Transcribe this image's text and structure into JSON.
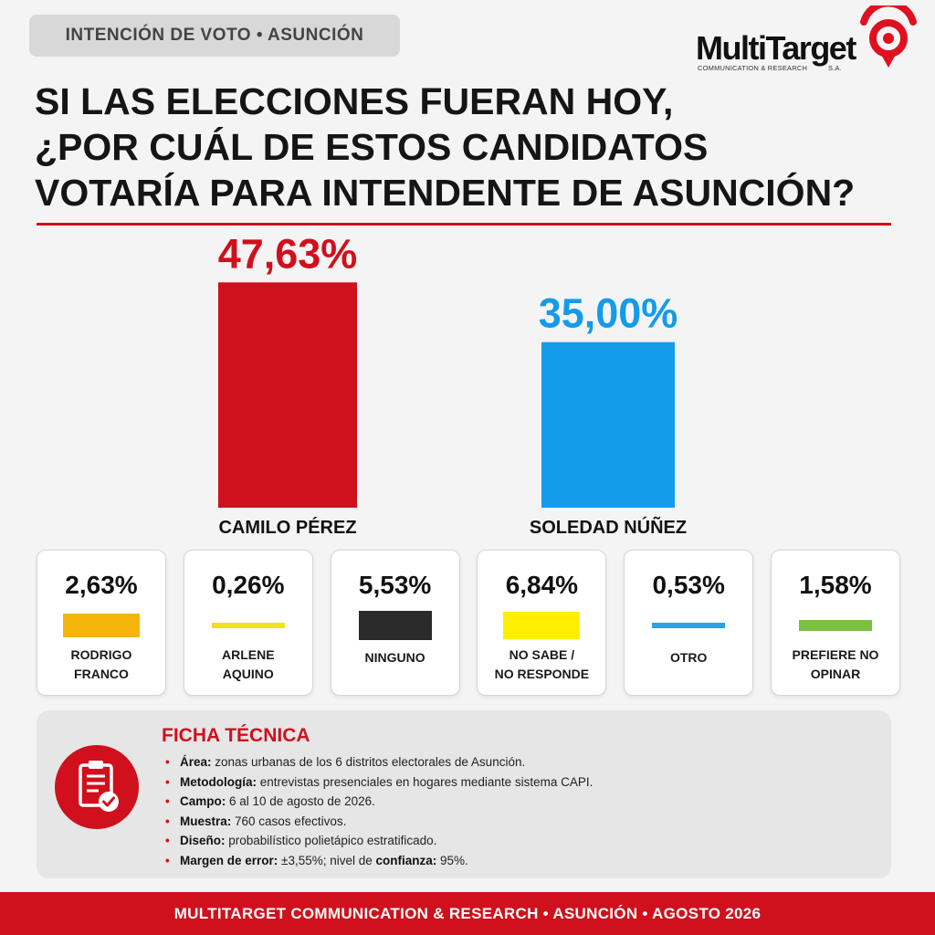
{
  "header": {
    "tag": "INTENCIÓN DE VOTO • ASUNCIÓN",
    "logo_brand": "MultiTarget",
    "logo_sub": "COMMUNICATION & RESEARCH",
    "logo_suffix": "S.A.",
    "question_lines": [
      "SI LAS ELECCIONES FUERAN HOY,",
      "¿POR CUÁL DE ESTOS CANDIDATOS",
      "VOTARÍA PARA INTENDENTE DE ASUNCIÓN?"
    ]
  },
  "chart_data": {
    "type": "bar",
    "categories": [
      "CAMILO PÉREZ",
      "SOLEDAD NÚÑEZ"
    ],
    "values": [
      47.63,
      35.0
    ],
    "value_labels": [
      "47,63%",
      "35,00%"
    ],
    "colors": [
      "#d0101c",
      "#149bea"
    ],
    "ylim": [
      0,
      50
    ],
    "grid": false,
    "others": [
      {
        "label_lines": [
          "RODRIGO",
          "FRANCO"
        ],
        "value": 2.63,
        "value_label": "2,63%",
        "color": "#f5b50a"
      },
      {
        "label_lines": [
          "ARLENE",
          "AQUINO"
        ],
        "value": 0.26,
        "value_label": "0,26%",
        "color": "#f2e21c"
      },
      {
        "label_lines": [
          "NINGUNO"
        ],
        "value": 5.53,
        "value_label": "5,53%",
        "color": "#2a2a2a"
      },
      {
        "label_lines": [
          "NO SABE /",
          "NO RESPONDE"
        ],
        "value": 6.84,
        "value_label": "6,84%",
        "color": "#ffee00"
      },
      {
        "label_lines": [
          "OTRO"
        ],
        "value": 0.53,
        "value_label": "0,53%",
        "color": "#29a3e6"
      },
      {
        "label_lines": [
          "PREFIERE NO",
          "OPINAR"
        ],
        "value": 1.58,
        "value_label": "1,58%",
        "color": "#79c043"
      }
    ]
  },
  "ficha": {
    "title": "FICHA TÉCNICA",
    "icon": "clipboard-check-icon",
    "items": [
      {
        "key": "Área:",
        "text": " zonas urbanas de los 6 distritos electorales de Asunción."
      },
      {
        "key": "Metodología:",
        "text": " entrevistas presenciales en hogares mediante sistema CAPI."
      },
      {
        "key": "Campo:",
        "text": " 6 al 10 de agosto de 2026."
      },
      {
        "key": "Muestra:",
        "text": " 760 casos efectivos."
      },
      {
        "key": "Diseño:",
        "text": " probabilístico polietápico estratificado."
      },
      {
        "key": "Margen de error:",
        "text": " ±3,55%; nivel de ",
        "key2": "confianza:",
        "text2": " 95%."
      }
    ]
  },
  "footer": {
    "text": "MULTITARGET COMMUNICATION & RESEARCH • ASUNCIÓN • AGOSTO 2026"
  }
}
